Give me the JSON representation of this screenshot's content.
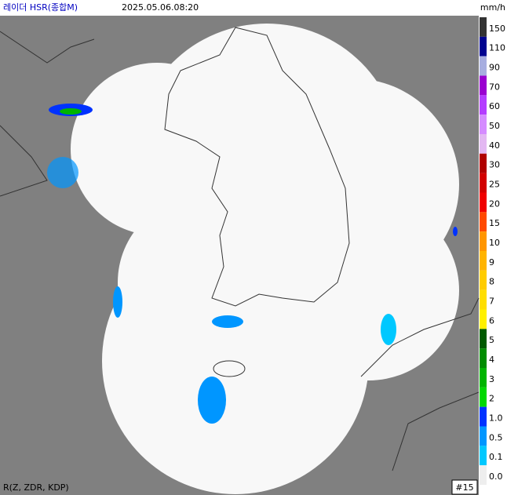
{
  "header": {
    "title": "레이더 HSR(종합M)",
    "time": "2025.05.06.08:20",
    "unit": "mm/h"
  },
  "legend": [
    {
      "label": "150",
      "color": "#333333"
    },
    {
      "label": "110",
      "color": "#000390"
    },
    {
      "label": "90",
      "color": "#a7aee0"
    },
    {
      "label": "70",
      "color": "#9a00d0"
    },
    {
      "label": "60",
      "color": "#b43dff"
    },
    {
      "label": "50",
      "color": "#d58cff"
    },
    {
      "label": "40",
      "color": "#e3b8f2"
    },
    {
      "label": "30",
      "color": "#b00000"
    },
    {
      "label": "25",
      "color": "#d20000"
    },
    {
      "label": "20",
      "color": "#f00000"
    },
    {
      "label": "15",
      "color": "#ff4a00"
    },
    {
      "label": "10",
      "color": "#ff9600"
    },
    {
      "label": "9",
      "color": "#ffb400"
    },
    {
      "label": "8",
      "color": "#ffcc00"
    },
    {
      "label": "7",
      "color": "#ffde00"
    },
    {
      "label": "6",
      "color": "#fff000"
    },
    {
      "label": "5",
      "color": "#005a00"
    },
    {
      "label": "4",
      "color": "#008c00"
    },
    {
      "label": "3",
      "color": "#00b400"
    },
    {
      "label": "2",
      "color": "#00d800"
    },
    {
      "label": "1.0",
      "color": "#0032ff"
    },
    {
      "label": "0.5",
      "color": "#0096ff"
    },
    {
      "label": "0.1",
      "color": "#00c8ff"
    },
    {
      "label": "0.0",
      "color": "#eeeeee"
    }
  ],
  "footer": {
    "method": "R(Z, ZDR, KDP)",
    "index": "#15"
  }
}
